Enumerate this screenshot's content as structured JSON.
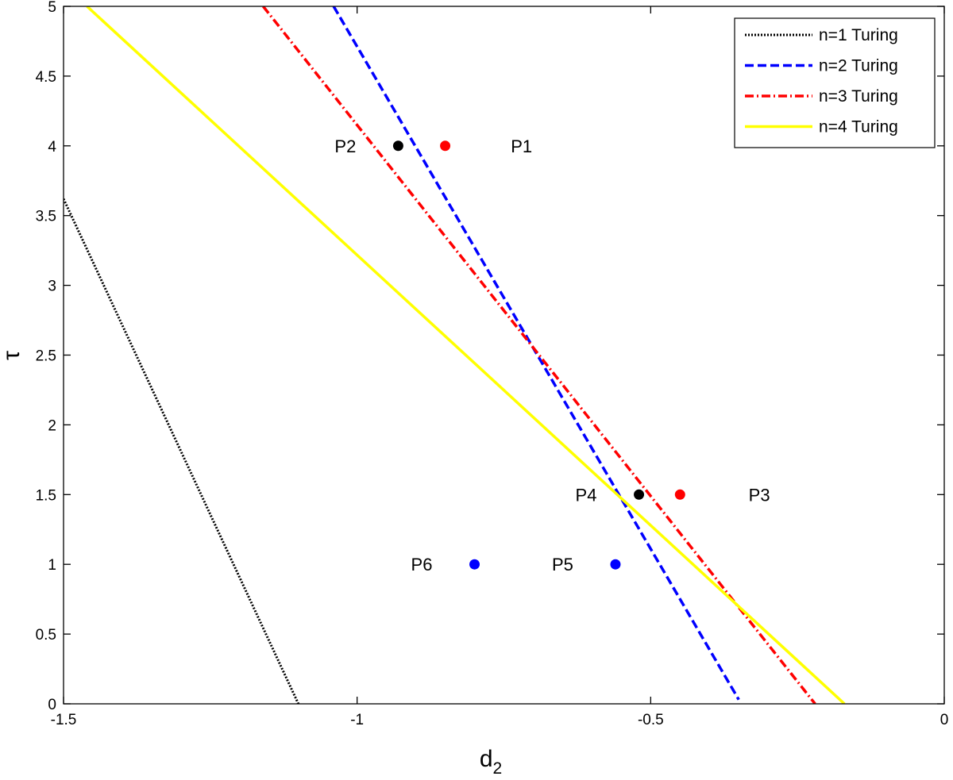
{
  "chart_data": {
    "type": "line",
    "title": "",
    "xlabel": "d",
    "xlabel_sub": "2",
    "ylabel": "τ",
    "xlim": [
      -1.5,
      0
    ],
    "ylim": [
      0,
      5
    ],
    "xticks": [
      -1.5,
      -1,
      -0.5,
      0
    ],
    "xtick_labels": [
      "-1.5",
      "-1",
      "-0.5",
      "0"
    ],
    "yticks": [
      0,
      0.5,
      1,
      1.5,
      2,
      2.5,
      3,
      3.5,
      4,
      4.5,
      5
    ],
    "ytick_labels": [
      "0",
      "0.5",
      "1",
      "1.5",
      "2",
      "2.5",
      "3",
      "3.5",
      "4",
      "4.5",
      "5"
    ],
    "grid": false,
    "legend_position": "top-right",
    "series": [
      {
        "name": "n=1 Turing",
        "color": "#000000",
        "style": "dotted",
        "x": [
          -1.5,
          -1.1
        ],
        "y": [
          3.62,
          0
        ]
      },
      {
        "name": "n=2 Turing",
        "color": "#0000ff",
        "style": "dashed",
        "x": [
          -1.04,
          -0.35
        ],
        "y": [
          5,
          0.03
        ]
      },
      {
        "name": "n=3 Turing",
        "color": "#ff0000",
        "style": "dashdot",
        "x": [
          -1.16,
          -0.22
        ],
        "y": [
          5,
          0
        ]
      },
      {
        "name": "n=4 Turing",
        "color": "#ffff00",
        "style": "solid",
        "x": [
          -1.46,
          -0.17
        ],
        "y": [
          5,
          0
        ]
      }
    ],
    "points": [
      {
        "label": "P1",
        "x": -0.85,
        "y": 4,
        "color": "#ff0000",
        "label_x": -0.72
      },
      {
        "label": "P2",
        "x": -0.93,
        "y": 4,
        "color": "#000000",
        "label_x": -1.02
      },
      {
        "label": "P3",
        "x": -0.45,
        "y": 1.5,
        "color": "#ff0000",
        "label_x": -0.315
      },
      {
        "label": "P4",
        "x": -0.52,
        "y": 1.5,
        "color": "#000000",
        "label_x": -0.61
      },
      {
        "label": "P5",
        "x": -0.56,
        "y": 1,
        "color": "#0000ff",
        "label_x": -0.65
      },
      {
        "label": "P6",
        "x": -0.8,
        "y": 1,
        "color": "#0000ff",
        "label_x": -0.89
      }
    ]
  }
}
